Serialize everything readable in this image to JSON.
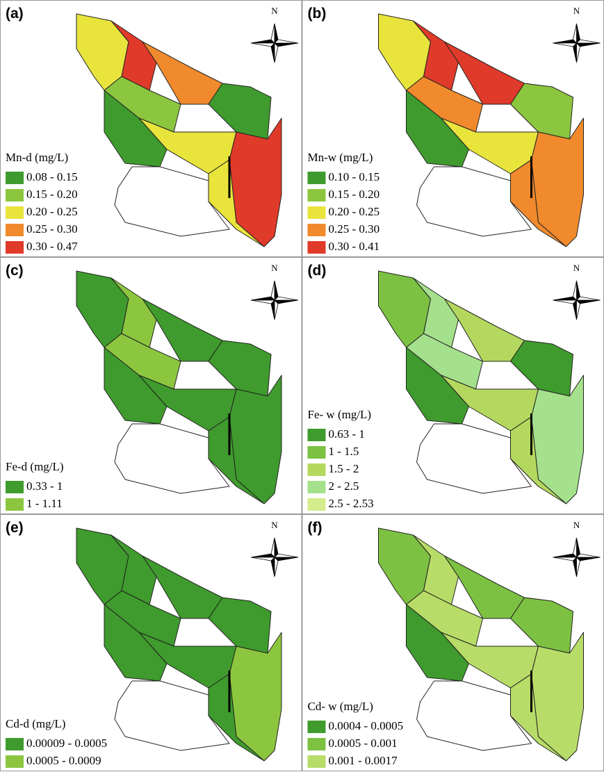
{
  "panels": [
    {
      "label": "(a)",
      "north": "N",
      "legend": {
        "title": "Mn-d (mg/L)",
        "items": [
          {
            "label": "0.08 - 0.15",
            "color": "#3f9b2d"
          },
          {
            "label": "0.15 - 0.20",
            "color": "#8cc63f"
          },
          {
            "label": "0.20 - 0.25",
            "color": "#e8e43c"
          },
          {
            "label": "0.25 - 0.30",
            "color": "#f08a2c"
          },
          {
            "label": "0.30 - 0.47",
            "color": "#e03a2a"
          }
        ]
      }
    },
    {
      "label": "(b)",
      "north": "N",
      "legend": {
        "title": "Mn-w (mg/L)",
        "items": [
          {
            "label": "0.10 - 0.15",
            "color": "#3f9b2d"
          },
          {
            "label": "0.15 - 0.20",
            "color": "#8cc63f"
          },
          {
            "label": "0.20 - 0.25",
            "color": "#e8e43c"
          },
          {
            "label": "0.25 - 0.30",
            "color": "#f08a2c"
          },
          {
            "label": "0.30 - 0.41",
            "color": "#e03a2a"
          }
        ]
      }
    },
    {
      "label": "(c)",
      "north": "N",
      "legend": {
        "title": "Fe-d (mg/L)",
        "items": [
          {
            "label": "0.33 - 1",
            "color": "#3f9b2d"
          },
          {
            "label": "1 - 1.11",
            "color": "#8cc63f"
          }
        ]
      }
    },
    {
      "label": "(d)",
      "north": "N",
      "legend": {
        "title": "Fe- w (mg/L)",
        "items": [
          {
            "label": "0.63 - 1",
            "color": "#3f9b2d"
          },
          {
            "label": "1 - 1.5",
            "color": "#7cc142"
          },
          {
            "label": "1.5 - 2",
            "color": "#b4d85e"
          },
          {
            "label": "2 - 2.5",
            "color": "#a5e08c"
          },
          {
            "label": "2.5 - 2.53",
            "color": "#d4ec8c"
          }
        ]
      }
    },
    {
      "label": "(e)",
      "north": "N",
      "legend": {
        "title": "Cd-d (mg/L)",
        "items": [
          {
            "label": "0.00009 - 0.0005",
            "color": "#3f9b2d"
          },
          {
            "label": "0.0005 - 0.0009",
            "color": "#8cc63f"
          }
        ]
      }
    },
    {
      "label": "(f)",
      "north": "N",
      "legend": {
        "title": "Cd- w (mg/L)",
        "items": [
          {
            "label": "0.0004 - 0.0005",
            "color": "#3f9b2d"
          },
          {
            "label": "0.0005 - 0.001",
            "color": "#7cc142"
          },
          {
            "label": "0.001 - 0.0017",
            "color": "#b8dc68"
          }
        ]
      }
    }
  ]
}
